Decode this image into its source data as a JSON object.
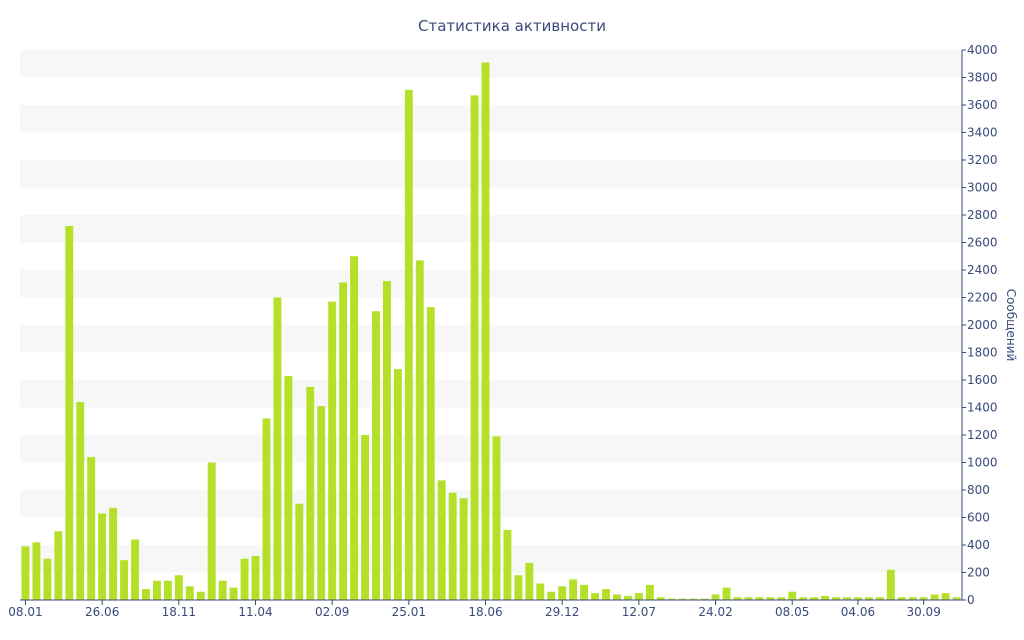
{
  "chart_data": {
    "type": "bar",
    "title": "Статистика активности",
    "ylabel": "Сообщений",
    "xlabel": "",
    "ylim": [
      0,
      4000
    ],
    "y_ticks": [
      0,
      200,
      400,
      600,
      800,
      1000,
      1200,
      1400,
      1600,
      1800,
      2000,
      2200,
      2400,
      2600,
      2800,
      3000,
      3200,
      3400,
      3600,
      3800,
      4000
    ],
    "y_axis_side": "right",
    "grid": "alternating horizontal bands",
    "x_tick_labels": [
      {
        "label": "08.01",
        "index": 0
      },
      {
        "label": "26.06",
        "index": 7
      },
      {
        "label": "18.11",
        "index": 14
      },
      {
        "label": "11.04",
        "index": 21
      },
      {
        "label": "02.09",
        "index": 28
      },
      {
        "label": "25.01",
        "index": 35
      },
      {
        "label": "18.06",
        "index": 42
      },
      {
        "label": "29.12",
        "index": 49
      },
      {
        "label": "12.07",
        "index": 56
      },
      {
        "label": "24.02",
        "index": 63
      },
      {
        "label": "08.05",
        "index": 70
      },
      {
        "label": "04.06",
        "index": 76
      },
      {
        "label": "30.09",
        "index": 82
      }
    ],
    "values": [
      390,
      420,
      300,
      500,
      2720,
      1440,
      1040,
      630,
      670,
      290,
      440,
      80,
      140,
      140,
      180,
      100,
      60,
      1000,
      140,
      90,
      300,
      320,
      1320,
      2200,
      1630,
      700,
      1550,
      1410,
      2170,
      2310,
      2500,
      1200,
      2100,
      2320,
      1680,
      3710,
      2470,
      2130,
      870,
      780,
      740,
      3670,
      3910,
      1190,
      510,
      180,
      270,
      120,
      60,
      100,
      150,
      110,
      50,
      80,
      40,
      30,
      50,
      110,
      20,
      10,
      10,
      10,
      10,
      40,
      90,
      20,
      20,
      20,
      20,
      20,
      60,
      20,
      20,
      30,
      20,
      20,
      20,
      20,
      20,
      220,
      20,
      20,
      20,
      40,
      50,
      20
    ]
  },
  "colors": {
    "bar": "#b5e02a",
    "band": "#f7f7f7",
    "text": "#3a4a7a",
    "axis": "#3a4a7a"
  }
}
